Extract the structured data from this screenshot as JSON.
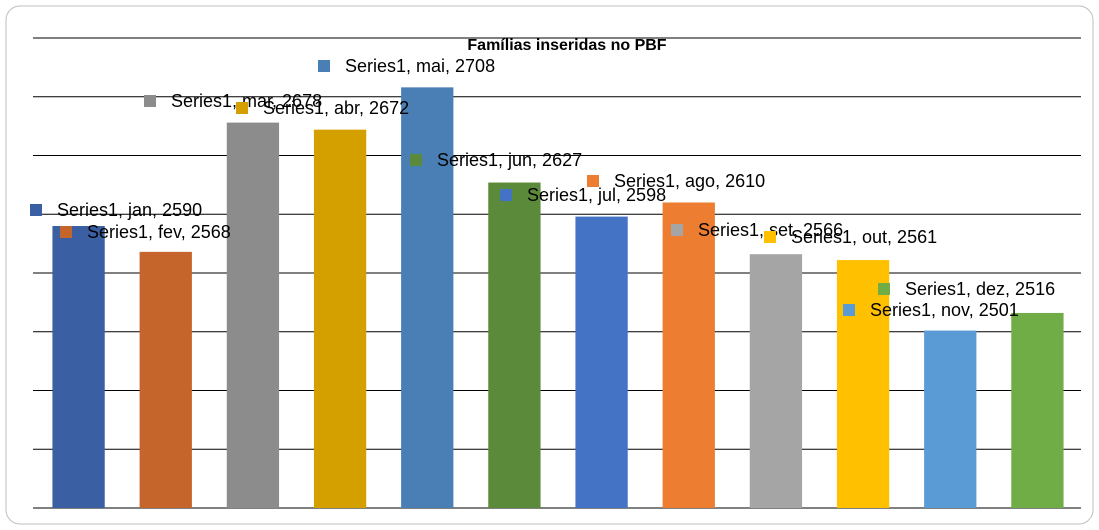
{
  "chart_data": {
    "type": "bar",
    "title": "Famílias inseridas no PBF",
    "series_name": "Series1",
    "categories": [
      "jan",
      "fev",
      "mar",
      "abr",
      "mai",
      "jun",
      "jul",
      "ago",
      "set",
      "out",
      "nov",
      "dez"
    ],
    "values": [
      2590,
      2568,
      2678,
      2672,
      2708,
      2627,
      2598,
      2610,
      2566,
      2561,
      2501,
      2516
    ],
    "value_labels": [
      "Series1, jan, 2590",
      "Series1, fev, 2568",
      "Series1, mar, 2678",
      "Series1, abr, 2672",
      "Series1, mai, 2708",
      "Series1, jun, 2627",
      "Series1, jul, 2598",
      "Series1, ago, 2610",
      "Series1, set, 2566",
      "Series1, out, 2561",
      "Series1, nov, 2501",
      "Series1, dez, 2516"
    ],
    "colors": [
      "#3a5fa3",
      "#c6652b",
      "#8c8c8c",
      "#d4a000",
      "#4a7fb5",
      "#5a8a3a",
      "#4472c4",
      "#ed7d31",
      "#a5a5a5",
      "#ffc000",
      "#5b9bd5",
      "#70ad47"
    ],
    "ylim": [
      2350,
      2750
    ],
    "yticks": [
      2350,
      2400,
      2450,
      2500,
      2550,
      2600,
      2650,
      2700,
      2750
    ],
    "grid": true
  }
}
